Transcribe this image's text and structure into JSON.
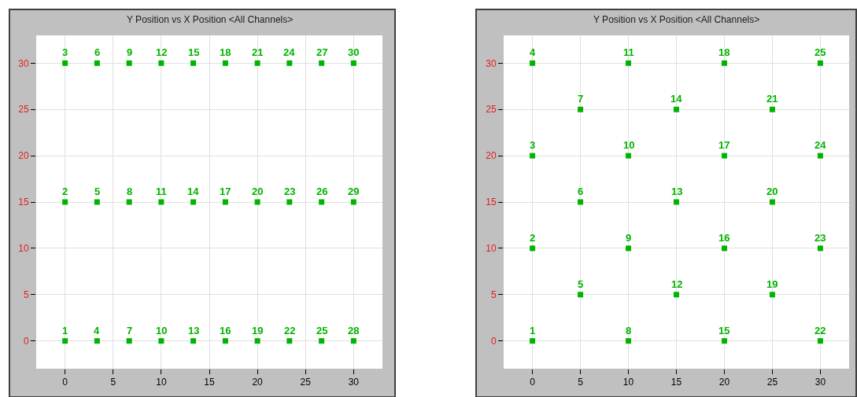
{
  "chart_data": [
    {
      "type": "scatter",
      "title": "Y Position vs X Position <All Channels>",
      "marker": "square",
      "grid": true,
      "color": "#00b400",
      "x": [
        0,
        0,
        0,
        3.33,
        3.33,
        3.33,
        6.67,
        6.67,
        6.67,
        10,
        10,
        10,
        13.33,
        13.33,
        13.33,
        16.67,
        16.67,
        16.67,
        20,
        20,
        20,
        23.33,
        23.33,
        23.33,
        26.67,
        26.67,
        26.67,
        30,
        30,
        30
      ],
      "values": [
        0,
        15,
        30,
        0,
        15,
        30,
        0,
        15,
        30,
        0,
        15,
        30,
        0,
        15,
        30,
        0,
        15,
        30,
        0,
        15,
        30,
        0,
        15,
        30,
        0,
        15,
        30,
        0,
        15,
        30
      ],
      "annotations": [
        {
          "text": "1",
          "x": 0,
          "y": 0
        },
        {
          "text": "2",
          "x": 0,
          "y": 15
        },
        {
          "text": "3",
          "x": 0,
          "y": 30
        },
        {
          "text": "4",
          "x": 3.33,
          "y": 0
        },
        {
          "text": "5",
          "x": 3.33,
          "y": 15
        },
        {
          "text": "6",
          "x": 3.33,
          "y": 30
        },
        {
          "text": "7",
          "x": 6.67,
          "y": 0
        },
        {
          "text": "8",
          "x": 6.67,
          "y": 15
        },
        {
          "text": "9",
          "x": 6.67,
          "y": 30
        },
        {
          "text": "10",
          "x": 10,
          "y": 0
        },
        {
          "text": "11",
          "x": 10,
          "y": 15
        },
        {
          "text": "12",
          "x": 10,
          "y": 30
        },
        {
          "text": "13",
          "x": 13.33,
          "y": 0
        },
        {
          "text": "14",
          "x": 13.33,
          "y": 15
        },
        {
          "text": "15",
          "x": 13.33,
          "y": 30
        },
        {
          "text": "16",
          "x": 16.67,
          "y": 0
        },
        {
          "text": "17",
          "x": 16.67,
          "y": 15
        },
        {
          "text": "18",
          "x": 16.67,
          "y": 30
        },
        {
          "text": "19",
          "x": 20,
          "y": 0
        },
        {
          "text": "20",
          "x": 20,
          "y": 15
        },
        {
          "text": "21",
          "x": 20,
          "y": 30
        },
        {
          "text": "22",
          "x": 23.33,
          "y": 0
        },
        {
          "text": "23",
          "x": 23.33,
          "y": 15
        },
        {
          "text": "24",
          "x": 23.33,
          "y": 30
        },
        {
          "text": "25",
          "x": 26.67,
          "y": 0
        },
        {
          "text": "26",
          "x": 26.67,
          "y": 15
        },
        {
          "text": "27",
          "x": 26.67,
          "y": 30
        },
        {
          "text": "28",
          "x": 30,
          "y": 0
        },
        {
          "text": "29",
          "x": 30,
          "y": 15
        },
        {
          "text": "30",
          "x": 30,
          "y": 30
        }
      ],
      "xlim": [
        -3,
        33
      ],
      "ylim": [
        -3,
        33
      ],
      "xticks": [
        0,
        5,
        10,
        15,
        20,
        25,
        30
      ],
      "yticks": [
        0,
        5,
        10,
        15,
        20,
        25,
        30
      ]
    },
    {
      "type": "scatter",
      "title": "Y Position vs X Position <All Channels>",
      "marker": "square",
      "grid": true,
      "color": "#00b400",
      "x": [
        0,
        0,
        0,
        0,
        5,
        5,
        5,
        10,
        10,
        10,
        10,
        15,
        15,
        15,
        20,
        20,
        20,
        20,
        25,
        25,
        25,
        30,
        30,
        30,
        30
      ],
      "values": [
        0,
        10,
        20,
        30,
        5,
        15,
        25,
        0,
        10,
        20,
        30,
        5,
        15,
        25,
        0,
        10,
        20,
        30,
        5,
        15,
        25,
        0,
        10,
        20,
        30
      ],
      "annotations": [
        {
          "text": "1",
          "x": 0,
          "y": 0
        },
        {
          "text": "2",
          "x": 0,
          "y": 10
        },
        {
          "text": "3",
          "x": 0,
          "y": 20
        },
        {
          "text": "4",
          "x": 0,
          "y": 30
        },
        {
          "text": "5",
          "x": 5,
          "y": 5
        },
        {
          "text": "6",
          "x": 5,
          "y": 15
        },
        {
          "text": "7",
          "x": 5,
          "y": 25
        },
        {
          "text": "8",
          "x": 10,
          "y": 0
        },
        {
          "text": "9",
          "x": 10,
          "y": 10
        },
        {
          "text": "10",
          "x": 10,
          "y": 20
        },
        {
          "text": "11",
          "x": 10,
          "y": 30
        },
        {
          "text": "12",
          "x": 15,
          "y": 5
        },
        {
          "text": "13",
          "x": 15,
          "y": 15
        },
        {
          "text": "14",
          "x": 15,
          "y": 25
        },
        {
          "text": "15",
          "x": 20,
          "y": 0
        },
        {
          "text": "16",
          "x": 20,
          "y": 10
        },
        {
          "text": "17",
          "x": 20,
          "y": 20
        },
        {
          "text": "18",
          "x": 20,
          "y": 30
        },
        {
          "text": "19",
          "x": 25,
          "y": 5
        },
        {
          "text": "20",
          "x": 25,
          "y": 15
        },
        {
          "text": "21",
          "x": 25,
          "y": 25
        },
        {
          "text": "22",
          "x": 30,
          "y": 0
        },
        {
          "text": "23",
          "x": 30,
          "y": 10
        },
        {
          "text": "24",
          "x": 30,
          "y": 20
        },
        {
          "text": "25",
          "x": 30,
          "y": 30
        }
      ],
      "xlim": [
        -3,
        33
      ],
      "ylim": [
        -3,
        33
      ],
      "xticks": [
        0,
        5,
        10,
        15,
        20,
        25,
        30
      ],
      "yticks": [
        0,
        5,
        10,
        15,
        20,
        25,
        30
      ]
    }
  ]
}
